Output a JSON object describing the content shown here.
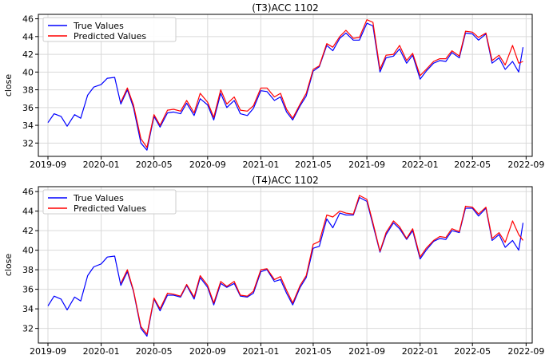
{
  "chart_data": [
    {
      "type": "line",
      "title": "(T3)ACC 1102",
      "xlabel": "",
      "ylabel": "close",
      "xlim": [
        "2019-08-10",
        "2022-09-15"
      ],
      "ylim": [
        30.5,
        46.5
      ],
      "x_ticks": [
        "2019-09",
        "2020-01",
        "2020-05",
        "2020-09",
        "2021-01",
        "2021-05",
        "2021-09",
        "2022-01",
        "2022-05",
        "2022-09"
      ],
      "y_ticks": [
        32,
        34,
        36,
        38,
        40,
        42,
        44,
        46
      ],
      "grid": true,
      "legend": "top-left",
      "colors": {
        "True Values": "#0000ff",
        "Predicted Values": "#ff0000"
      },
      "series": [
        {
          "name": "True Values",
          "x": [
            "2019-09-01",
            "2019-09-15",
            "2019-10-01",
            "2019-10-15",
            "2019-11-01",
            "2019-11-15",
            "2019-12-01",
            "2019-12-15",
            "2020-01-01",
            "2020-01-15",
            "2020-02-01",
            "2020-02-15",
            "2020-03-01",
            "2020-03-15",
            "2020-04-01",
            "2020-04-15",
            "2020-05-01",
            "2020-05-15",
            "2020-06-01",
            "2020-06-15",
            "2020-07-01",
            "2020-07-15",
            "2020-08-01",
            "2020-08-15",
            "2020-09-01",
            "2020-09-15",
            "2020-10-01",
            "2020-10-15",
            "2020-11-01",
            "2020-11-15",
            "2020-12-01",
            "2020-12-15",
            "2021-01-01",
            "2021-01-15",
            "2021-02-01",
            "2021-02-15",
            "2021-03-01",
            "2021-03-15",
            "2021-04-01",
            "2021-04-15",
            "2021-05-01",
            "2021-05-15",
            "2021-06-01",
            "2021-06-15",
            "2021-07-01",
            "2021-07-15",
            "2021-08-01",
            "2021-08-15",
            "2021-09-01",
            "2021-09-15",
            "2021-10-01",
            "2021-10-15",
            "2021-11-01",
            "2021-11-15",
            "2021-12-01",
            "2021-12-15",
            "2022-01-01",
            "2022-01-15",
            "2022-02-01",
            "2022-02-15",
            "2022-03-01",
            "2022-03-15",
            "2022-04-01",
            "2022-04-15",
            "2022-05-01",
            "2022-05-15",
            "2022-06-01",
            "2022-06-15",
            "2022-07-01",
            "2022-07-15",
            "2022-08-01",
            "2022-08-15",
            "2022-08-25"
          ],
          "values": [
            34.3,
            35.3,
            35.0,
            33.9,
            35.2,
            34.8,
            37.4,
            38.3,
            38.6,
            39.3,
            39.4,
            36.4,
            38.0,
            36.0,
            32.0,
            31.2,
            35.0,
            33.8,
            35.4,
            35.5,
            35.3,
            36.5,
            35.1,
            37.0,
            36.3,
            34.6,
            37.6,
            36.0,
            36.8,
            35.3,
            35.1,
            35.9,
            37.9,
            37.8,
            36.8,
            37.2,
            35.5,
            34.6,
            36.2,
            37.3,
            40.1,
            40.6,
            43.0,
            42.4,
            43.8,
            44.4,
            43.6,
            43.6,
            45.5,
            45.2,
            40.0,
            41.6,
            41.8,
            42.6,
            41.0,
            41.9,
            39.2,
            40.1,
            41.0,
            41.3,
            41.2,
            42.2,
            41.6,
            44.4,
            44.3,
            43.6,
            44.3,
            41.0,
            41.6,
            40.3,
            41.2,
            40.0,
            42.8
          ]
        },
        {
          "name": "Predicted Values",
          "x": [
            "2020-02-15",
            "2020-03-01",
            "2020-03-15",
            "2020-04-01",
            "2020-04-15",
            "2020-05-01",
            "2020-05-15",
            "2020-06-01",
            "2020-06-15",
            "2020-07-01",
            "2020-07-15",
            "2020-08-01",
            "2020-08-15",
            "2020-09-01",
            "2020-09-15",
            "2020-10-01",
            "2020-10-15",
            "2020-11-01",
            "2020-11-15",
            "2020-12-01",
            "2020-12-15",
            "2021-01-01",
            "2021-01-15",
            "2021-02-01",
            "2021-02-15",
            "2021-03-01",
            "2021-03-15",
            "2021-04-01",
            "2021-04-15",
            "2021-05-01",
            "2021-05-15",
            "2021-06-01",
            "2021-06-15",
            "2021-07-01",
            "2021-07-15",
            "2021-08-01",
            "2021-08-15",
            "2021-09-01",
            "2021-09-15",
            "2021-10-01",
            "2021-10-15",
            "2021-11-01",
            "2021-11-15",
            "2021-12-01",
            "2021-12-15",
            "2022-01-01",
            "2022-01-15",
            "2022-02-01",
            "2022-02-15",
            "2022-03-01",
            "2022-03-15",
            "2022-04-01",
            "2022-04-15",
            "2022-05-01",
            "2022-05-15",
            "2022-06-01",
            "2022-06-15",
            "2022-07-01",
            "2022-07-15",
            "2022-08-01",
            "2022-08-15",
            "2022-08-25"
          ],
          "values": [
            36.6,
            38.2,
            36.3,
            32.5,
            31.5,
            35.2,
            34.0,
            35.7,
            35.8,
            35.6,
            36.8,
            35.4,
            37.6,
            36.6,
            34.9,
            38.0,
            36.4,
            37.2,
            35.7,
            35.6,
            36.2,
            38.2,
            38.2,
            37.2,
            37.6,
            35.8,
            34.8,
            36.4,
            37.6,
            40.3,
            40.7,
            43.2,
            42.8,
            44.0,
            44.7,
            43.8,
            43.9,
            45.9,
            45.6,
            40.3,
            41.9,
            42.0,
            43.0,
            41.3,
            42.1,
            39.6,
            40.3,
            41.2,
            41.5,
            41.5,
            42.4,
            41.8,
            44.6,
            44.5,
            43.9,
            44.4,
            41.3,
            41.9,
            40.8,
            43.0,
            41.0,
            41.2
          ]
        }
      ]
    },
    {
      "type": "line",
      "title": "(T4)ACC 1102",
      "xlabel": "",
      "ylabel": "close",
      "xlim": [
        "2019-08-10",
        "2022-09-15"
      ],
      "ylim": [
        30.5,
        46.5
      ],
      "x_ticks": [
        "2019-09",
        "2020-01",
        "2020-05",
        "2020-09",
        "2021-01",
        "2021-05",
        "2021-09",
        "2022-01",
        "2022-05",
        "2022-09"
      ],
      "y_ticks": [
        32,
        34,
        36,
        38,
        40,
        42,
        44,
        46
      ],
      "grid": true,
      "legend": "top-left",
      "colors": {
        "True Values": "#0000ff",
        "Predicted Values": "#ff0000"
      },
      "series": [
        {
          "name": "True Values",
          "x": [
            "2019-09-01",
            "2019-09-15",
            "2019-10-01",
            "2019-10-15",
            "2019-11-01",
            "2019-11-15",
            "2019-12-01",
            "2019-12-15",
            "2020-01-01",
            "2020-01-15",
            "2020-02-01",
            "2020-02-15",
            "2020-03-01",
            "2020-03-15",
            "2020-04-01",
            "2020-04-15",
            "2020-05-01",
            "2020-05-15",
            "2020-06-01",
            "2020-06-15",
            "2020-07-01",
            "2020-07-15",
            "2020-08-01",
            "2020-08-15",
            "2020-09-01",
            "2020-09-15",
            "2020-10-01",
            "2020-10-15",
            "2020-11-01",
            "2020-11-15",
            "2020-12-01",
            "2020-12-15",
            "2021-01-01",
            "2021-01-15",
            "2021-02-01",
            "2021-02-15",
            "2021-03-01",
            "2021-03-15",
            "2021-04-01",
            "2021-04-15",
            "2021-05-01",
            "2021-05-15",
            "2021-06-01",
            "2021-06-15",
            "2021-07-01",
            "2021-07-15",
            "2021-08-01",
            "2021-08-15",
            "2021-09-01",
            "2021-09-15",
            "2021-10-01",
            "2021-10-15",
            "2021-11-01",
            "2021-11-15",
            "2021-12-01",
            "2021-12-15",
            "2022-01-01",
            "2022-01-15",
            "2022-02-01",
            "2022-02-15",
            "2022-03-01",
            "2022-03-15",
            "2022-04-01",
            "2022-04-15",
            "2022-05-01",
            "2022-05-15",
            "2022-06-01",
            "2022-06-15",
            "2022-07-01",
            "2022-07-15",
            "2022-08-01",
            "2022-08-15",
            "2022-08-25"
          ],
          "values": [
            34.3,
            35.3,
            35.0,
            33.9,
            35.2,
            34.8,
            37.4,
            38.3,
            38.6,
            39.3,
            39.4,
            36.4,
            37.8,
            35.8,
            32.0,
            31.2,
            35.0,
            33.8,
            35.4,
            35.4,
            35.2,
            36.4,
            35.0,
            37.2,
            36.2,
            34.4,
            36.6,
            36.2,
            36.6,
            35.3,
            35.2,
            35.6,
            37.8,
            38.0,
            36.8,
            37.0,
            35.6,
            34.4,
            36.2,
            37.2,
            40.2,
            40.4,
            43.2,
            42.3,
            43.8,
            43.6,
            43.6,
            45.4,
            45.0,
            42.6,
            39.8,
            41.6,
            42.8,
            42.2,
            41.1,
            42.0,
            39.1,
            40.0,
            40.9,
            41.2,
            41.1,
            42.0,
            41.8,
            44.3,
            44.3,
            43.5,
            44.3,
            41.0,
            41.6,
            40.3,
            41.0,
            40.0,
            42.8
          ]
        },
        {
          "name": "Predicted Values",
          "x": [
            "2020-02-15",
            "2020-03-01",
            "2020-03-15",
            "2020-04-01",
            "2020-04-15",
            "2020-05-01",
            "2020-05-15",
            "2020-06-01",
            "2020-06-15",
            "2020-07-01",
            "2020-07-15",
            "2020-08-01",
            "2020-08-15",
            "2020-09-01",
            "2020-09-15",
            "2020-10-01",
            "2020-10-15",
            "2020-11-01",
            "2020-11-15",
            "2020-12-01",
            "2020-12-15",
            "2021-01-01",
            "2021-01-15",
            "2021-02-01",
            "2021-02-15",
            "2021-03-01",
            "2021-03-15",
            "2021-04-01",
            "2021-04-15",
            "2021-05-01",
            "2021-05-15",
            "2021-06-01",
            "2021-06-15",
            "2021-07-01",
            "2021-07-15",
            "2021-08-01",
            "2021-08-15",
            "2021-09-01",
            "2021-09-15",
            "2021-10-01",
            "2021-10-15",
            "2021-11-01",
            "2021-11-15",
            "2021-12-01",
            "2021-12-15",
            "2022-01-01",
            "2022-01-15",
            "2022-02-01",
            "2022-02-15",
            "2022-03-01",
            "2022-03-15",
            "2022-04-01",
            "2022-04-15",
            "2022-05-01",
            "2022-05-15",
            "2022-06-01",
            "2022-06-15",
            "2022-07-01",
            "2022-07-15",
            "2022-08-01",
            "2022-08-15",
            "2022-08-25"
          ],
          "values": [
            36.6,
            38.0,
            35.9,
            32.2,
            31.4,
            35.1,
            34.0,
            35.6,
            35.5,
            35.3,
            36.5,
            35.2,
            37.4,
            36.4,
            34.6,
            36.8,
            36.3,
            36.8,
            35.4,
            35.3,
            35.8,
            38.0,
            38.1,
            37.0,
            37.3,
            35.9,
            34.6,
            36.4,
            37.4,
            40.6,
            40.9,
            43.6,
            43.4,
            44.0,
            43.8,
            43.7,
            45.6,
            45.2,
            42.8,
            39.9,
            41.8,
            43.0,
            42.4,
            41.2,
            42.2,
            39.3,
            40.2,
            41.0,
            41.4,
            41.3,
            42.2,
            41.9,
            44.5,
            44.4,
            43.7,
            44.4,
            41.2,
            41.8,
            40.8,
            43.0,
            41.6,
            41.0
          ]
        }
      ]
    }
  ]
}
